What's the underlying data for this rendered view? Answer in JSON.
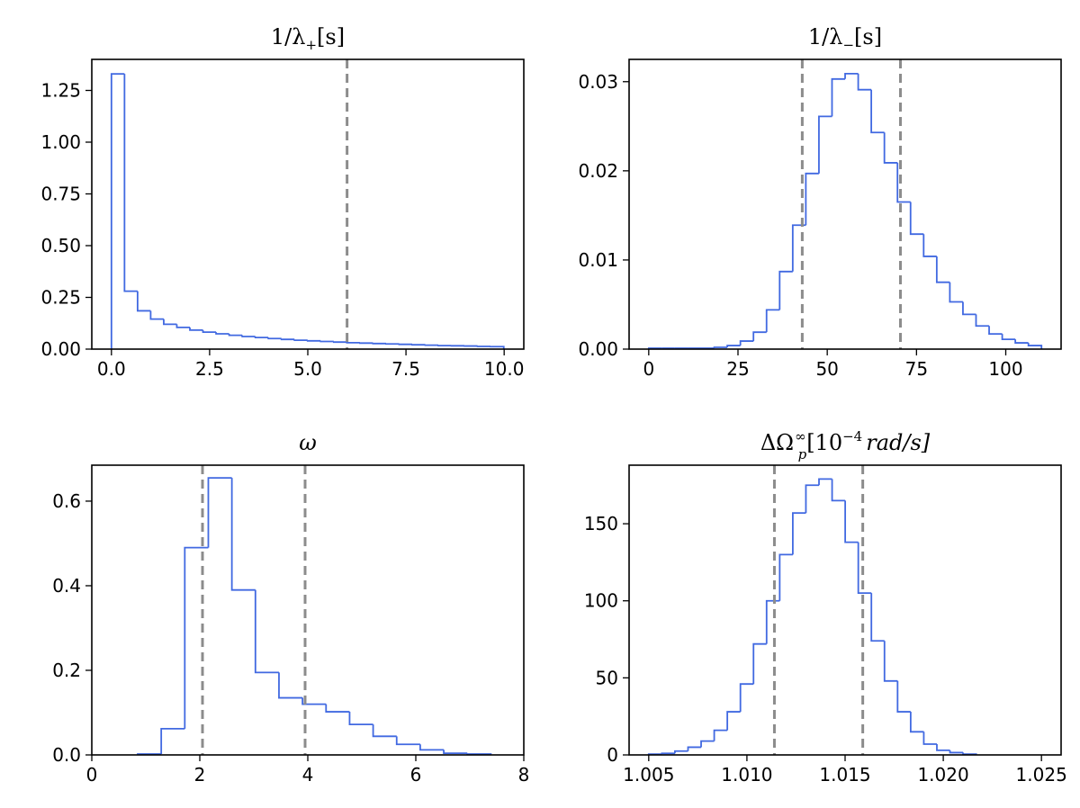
{
  "colors": {
    "histogram": "#4169E1",
    "interval": "#8c8c8c",
    "axes": "#000000"
  },
  "chart_data": [
    {
      "type": "histogram",
      "id": "lambda-plus",
      "title": "1/λ₊[s]",
      "title_parts": {
        "pre": "1/λ",
        "sub": "+",
        "post": "[s]"
      },
      "xlim": [
        -0.5,
        10.5
      ],
      "ylim": [
        0,
        1.4
      ],
      "xticks": [
        0,
        2.5,
        5,
        7.5,
        10
      ],
      "xtick_labels": [
        "0.0",
        "2.5",
        "5.0",
        "7.5",
        "10.0"
      ],
      "yticks": [
        0,
        0.25,
        0.5,
        0.75,
        1.0,
        1.25
      ],
      "ytick_labels": [
        "0.00",
        "0.25",
        "0.50",
        "0.75",
        "1.00",
        "1.25"
      ],
      "bin_start": 0,
      "bin_width": 0.333,
      "values": [
        1.33,
        0.28,
        0.185,
        0.145,
        0.12,
        0.105,
        0.092,
        0.082,
        0.074,
        0.067,
        0.061,
        0.056,
        0.051,
        0.047,
        0.043,
        0.04,
        0.037,
        0.034,
        0.031,
        0.029,
        0.027,
        0.025,
        0.023,
        0.021,
        0.019,
        0.017,
        0.016,
        0.015,
        0.013,
        0.012
      ],
      "vlines": [
        6.0
      ]
    },
    {
      "type": "histogram",
      "id": "lambda-minus",
      "title": "1/λ₋[s]",
      "title_parts": {
        "pre": "1/λ",
        "sub": "−",
        "post": "[s]"
      },
      "xlim": [
        -5.5,
        115.5
      ],
      "ylim": [
        0,
        0.0325
      ],
      "xticks": [
        0,
        25,
        50,
        75,
        100
      ],
      "xtick_labels": [
        "0",
        "25",
        "50",
        "75",
        "100"
      ],
      "yticks": [
        0,
        0.01,
        0.02,
        0.03
      ],
      "ytick_labels": [
        "0.00",
        "0.01",
        "0.02",
        "0.03"
      ],
      "bin_start": 0,
      "bin_width": 3.667,
      "values": [
        0.0001,
        0.0001,
        0.0001,
        0.0001,
        0.0001,
        0.0002,
        0.0004,
        0.0009,
        0.0019,
        0.0044,
        0.0087,
        0.0139,
        0.0197,
        0.0261,
        0.0303,
        0.0309,
        0.0291,
        0.0243,
        0.0209,
        0.0165,
        0.0129,
        0.0104,
        0.0075,
        0.0053,
        0.0039,
        0.0026,
        0.0017,
        0.0011,
        0.0007,
        0.0004
      ],
      "vlines": [
        43,
        70.5
      ]
    },
    {
      "type": "histogram",
      "id": "omega",
      "title": "ω",
      "title_parts": {
        "pre": "ω",
        "sub": "",
        "post": ""
      },
      "xlim": [
        0,
        8
      ],
      "ylim": [
        0,
        0.685
      ],
      "xticks": [
        0,
        2,
        4,
        6,
        8
      ],
      "xtick_labels": [
        "0",
        "2",
        "4",
        "6",
        "8"
      ],
      "yticks": [
        0,
        0.2,
        0.4,
        0.6
      ],
      "ytick_labels": [
        "0.0",
        "0.2",
        "0.4",
        "0.6"
      ],
      "bin_start": 0.85,
      "bin_width": 0.436,
      "values": [
        0.002,
        0.062,
        0.49,
        0.655,
        0.39,
        0.195,
        0.135,
        0.12,
        0.102,
        0.072,
        0.044,
        0.025,
        0.012,
        0.004,
        0.002
      ],
      "vlines": [
        2.05,
        3.95
      ]
    },
    {
      "type": "histogram",
      "id": "delta-omega",
      "title": "ΔΩp∞[10⁻⁴ rad/s]",
      "title_parts": {
        "pre": "ΔΩ",
        "sub": "p",
        "sup": "∞",
        "post": "[10",
        "post_sup": "−4",
        "tail": "rad/s]"
      },
      "xlim": [
        1.004,
        1.026
      ],
      "ylim": [
        0,
        188
      ],
      "xticks": [
        1.005,
        1.01,
        1.015,
        1.02,
        1.025
      ],
      "xtick_labels": [
        "1.005",
        "1.010",
        "1.015",
        "1.020",
        "1.025"
      ],
      "yticks": [
        0,
        50,
        100,
        150
      ],
      "ytick_labels": [
        "0",
        "50",
        "100",
        "150"
      ],
      "bin_start": 1.005,
      "bin_width": 0.000667,
      "values": [
        0.5,
        1,
        2.5,
        5,
        9,
        16,
        28,
        46,
        72,
        100,
        130,
        157,
        175,
        179,
        165,
        138,
        105,
        74,
        48,
        28,
        15,
        7,
        3,
        1.5,
        0.5
      ],
      "vlines": [
        1.0114,
        1.0159
      ]
    }
  ]
}
